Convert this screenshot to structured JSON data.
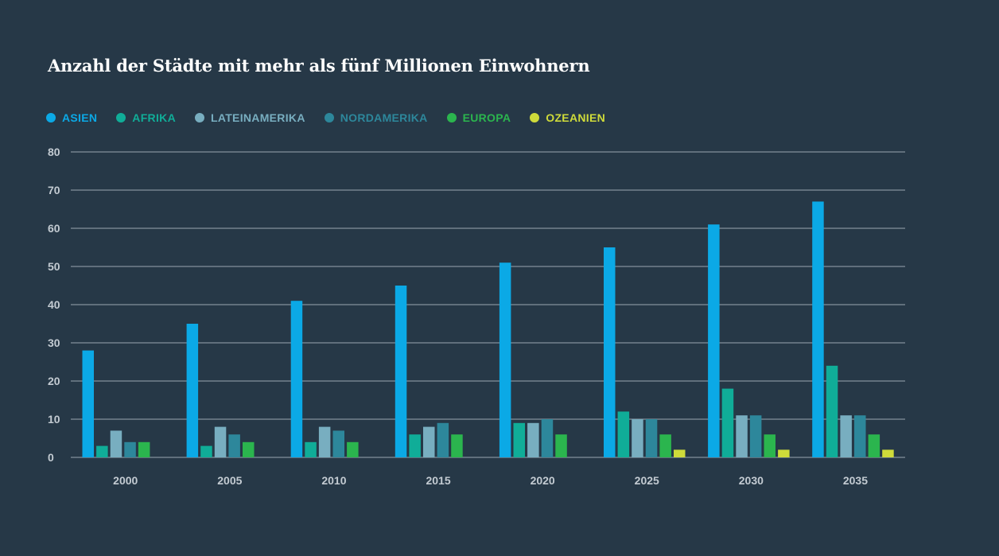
{
  "chart_data": {
    "type": "bar",
    "title": "Anzahl der Städte mit mehr als fünf Millionen Einwohnern",
    "xlabel": "",
    "ylabel": "",
    "ylim": [
      0,
      80
    ],
    "yticks": [
      "0",
      "10",
      "20",
      "30",
      "40",
      "50",
      "60",
      "70",
      "80"
    ],
    "categories": [
      "2000",
      "2005",
      "2010",
      "2015",
      "2020",
      "2025",
      "2030",
      "2035"
    ],
    "grid": true,
    "legend_position": "top-left",
    "series": [
      {
        "name": "ASIEN",
        "color": "#0ba9e6",
        "values": [
          28,
          35,
          41,
          45,
          51,
          55,
          61,
          67
        ]
      },
      {
        "name": "AFRIKA",
        "color": "#10ad98",
        "values": [
          3,
          3,
          4,
          6,
          9,
          12,
          18,
          24
        ]
      },
      {
        "name": "LATEINAMERIKA",
        "color": "#78aec0",
        "values": [
          7,
          8,
          8,
          8,
          9,
          10,
          11,
          11
        ]
      },
      {
        "name": "NORDAMERIKA",
        "color": "#2d879b",
        "values": [
          4,
          6,
          7,
          9,
          10,
          10,
          11,
          11
        ]
      },
      {
        "name": "EUROPA",
        "color": "#2bb54e",
        "values": [
          4,
          4,
          4,
          6,
          6,
          6,
          6,
          6
        ]
      },
      {
        "name": "OZEANIEN",
        "color": "#cfdb3a",
        "values": [
          0,
          0,
          0,
          0,
          0,
          2,
          2,
          2
        ]
      }
    ]
  }
}
